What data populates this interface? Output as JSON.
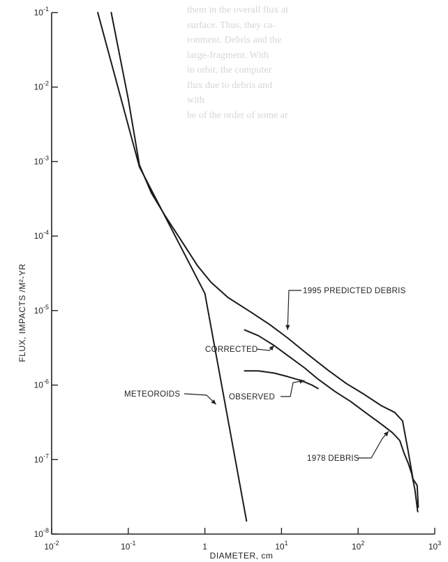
{
  "background_text": [
    "them in the overall flux at",
    "surface. Thus, they ca-",
    "ronment. Debris and the",
    "large-fragment. With",
    "in orbit, the computer",
    "flux due to debris and",
    "with",
    "be of the order of some ar"
  ],
  "chart_data": {
    "type": "line",
    "title": "",
    "xlabel": "DIAMETER, cm",
    "ylabel": "FLUX, IMPACTS /M²-YR",
    "xscale": "log",
    "yscale": "log",
    "xlim": [
      0.01,
      1000
    ],
    "ylim": [
      1e-08,
      0.1
    ],
    "grid": false,
    "x_ticks": [
      {
        "value": 0.01,
        "base": "10",
        "exp": "-2"
      },
      {
        "value": 0.1,
        "base": "10",
        "exp": "-1"
      },
      {
        "value": 1,
        "base": "1",
        "exp": ""
      },
      {
        "value": 10,
        "base": "10",
        "exp": "1"
      },
      {
        "value": 100,
        "base": "10",
        "exp": "2"
      },
      {
        "value": 1000,
        "base": "10",
        "exp": "3"
      }
    ],
    "y_ticks": [
      {
        "value": 0.1,
        "base": "10",
        "exp": "-1"
      },
      {
        "value": 0.01,
        "base": "10",
        "exp": "-2"
      },
      {
        "value": 0.001,
        "base": "10",
        "exp": "-3"
      },
      {
        "value": 0.0001,
        "base": "10",
        "exp": "-4"
      },
      {
        "value": 1e-05,
        "base": "10",
        "exp": "-5"
      },
      {
        "value": 1e-06,
        "base": "10",
        "exp": "-6"
      },
      {
        "value": 1e-07,
        "base": "10",
        "exp": "-7"
      },
      {
        "value": 1e-08,
        "base": "10",
        "exp": "-8"
      }
    ],
    "series": [
      {
        "name": "METEOROIDS",
        "points": [
          [
            0.04,
            0.1
          ],
          [
            0.14,
            0.00085
          ],
          [
            1,
            1.7e-05
          ],
          [
            3.5,
            1.5e-08
          ]
        ]
      },
      {
        "name": "1995 PREDICTED DEBRIS",
        "points": [
          [
            0.06,
            0.1
          ],
          [
            0.1,
            0.0069
          ],
          [
            0.14,
            0.0009
          ],
          [
            0.2,
            0.00038
          ],
          [
            0.3,
            0.00019
          ],
          [
            0.5,
            8.5e-05
          ],
          [
            0.8,
            4e-05
          ],
          [
            1.2,
            2.4e-05
          ],
          [
            2,
            1.5e-05
          ],
          [
            4,
            9.5e-06
          ],
          [
            7,
            6.5e-06
          ],
          [
            12,
            4.3e-06
          ],
          [
            20,
            2.8e-06
          ],
          [
            40,
            1.6e-06
          ],
          [
            70,
            1.05e-06
          ],
          [
            120,
            7.5e-07
          ],
          [
            200,
            5.3e-07
          ],
          [
            300,
            4.3e-07
          ],
          [
            380,
            3.3e-07
          ],
          [
            450,
            1.3e-07
          ],
          [
            520,
            5.5e-08
          ],
          [
            590,
            4.5e-08
          ],
          [
            610,
            2.3e-08
          ]
        ]
      },
      {
        "name": "CORRECTED",
        "points": [
          [
            3.3,
            5.5e-06
          ],
          [
            5,
            4.6e-06
          ],
          [
            8,
            3.4e-06
          ],
          [
            12,
            2.5e-06
          ],
          [
            20,
            1.7e-06
          ],
          [
            30,
            1.2e-06
          ],
          [
            50,
            8.2e-07
          ],
          [
            80,
            6e-07
          ],
          [
            120,
            4.4e-07
          ],
          [
            200,
            3e-07
          ],
          [
            280,
            2.3e-07
          ],
          [
            350,
            1.8e-07
          ],
          [
            400,
            1.2e-07
          ],
          [
            450,
            9e-08
          ],
          [
            500,
            6.5e-08
          ],
          [
            550,
            4e-08
          ],
          [
            600,
            2e-08
          ]
        ]
      },
      {
        "name": "OBSERVED",
        "points": [
          [
            3.3,
            1.55e-06
          ],
          [
            5,
            1.55e-06
          ],
          [
            8,
            1.45e-06
          ],
          [
            12,
            1.3e-06
          ],
          [
            18,
            1.15e-06
          ],
          [
            25,
            1e-06
          ],
          [
            30,
            9e-07
          ]
        ]
      }
    ],
    "annotations": [
      {
        "text": "1995 PREDICTED DEBRIS",
        "points_to": [
          12,
          5.5e-06
        ]
      },
      {
        "text": "CORRECTED",
        "points_to": [
          8,
          3.4e-06
        ]
      },
      {
        "text": "OBSERVED",
        "points_to": [
          20,
          1.15e-06
        ]
      },
      {
        "text": "METEOROIDS",
        "points_to": [
          1.4,
          5.5e-07
        ]
      },
      {
        "text": "1978 DEBRIS",
        "points_to": [
          250,
          2.4e-07
        ]
      }
    ]
  }
}
